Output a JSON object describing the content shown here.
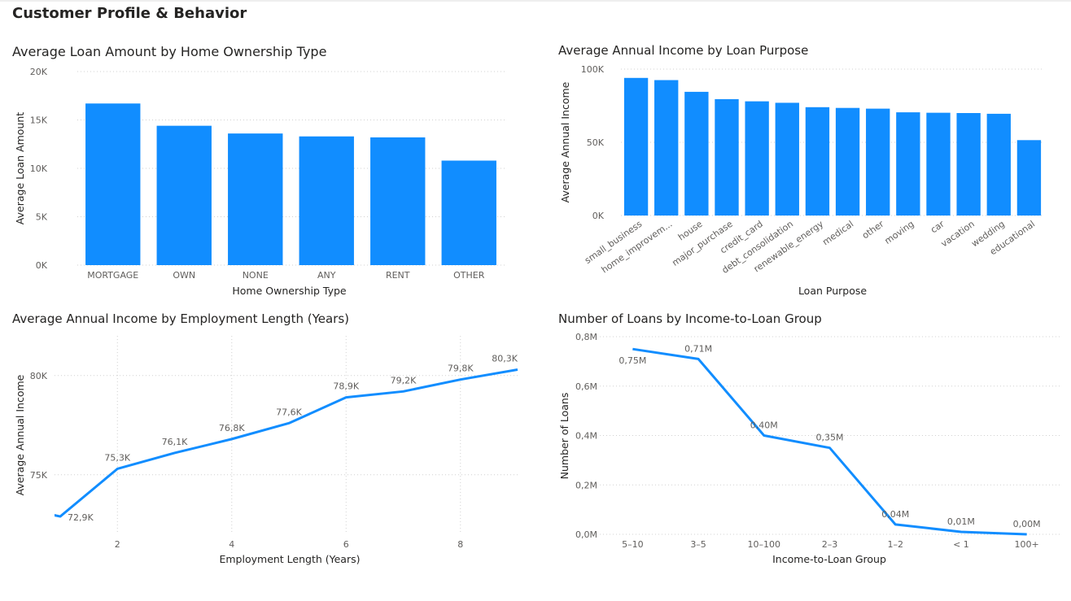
{
  "page": {
    "title": "Customer Profile & Behavior"
  },
  "colors": {
    "bar": "#118DFF",
    "line": "#118DFF"
  },
  "chart_data": [
    {
      "id": "home",
      "type": "bar",
      "title": "Average Loan Amount by Home Ownership Type",
      "xlabel": "Home Ownership Type",
      "ylabel": "Average Loan Amount",
      "categories": [
        "MORTGAGE",
        "OWN",
        "NONE",
        "ANY",
        "RENT",
        "OTHER"
      ],
      "values": [
        16700,
        14400,
        13600,
        13300,
        13200,
        10800
      ],
      "ylim": [
        0,
        20000
      ],
      "yticks": [
        0,
        5000,
        10000,
        15000,
        20000
      ],
      "ytick_labels": [
        "0K",
        "5K",
        "10K",
        "15K",
        "20K"
      ],
      "grid": true,
      "legend": "none"
    },
    {
      "id": "purpose",
      "type": "bar",
      "title": "Average Annual Income by Loan Purpose",
      "xlabel": "Loan Purpose",
      "ylabel": "Average Annual Income",
      "categories": [
        "small_business",
        "home_improvem...",
        "house",
        "major_purchase",
        "credit_card",
        "debt_consolidation",
        "renewable_energy",
        "medical",
        "other",
        "moving",
        "car",
        "vacation",
        "wedding",
        "educational"
      ],
      "values": [
        94000,
        92500,
        84500,
        79500,
        78000,
        77000,
        74000,
        73500,
        73000,
        70500,
        70200,
        70000,
        69500,
        51500
      ],
      "ylim": [
        0,
        100000
      ],
      "yticks": [
        0,
        50000,
        100000
      ],
      "ytick_labels": [
        "0K",
        "50K",
        "100K"
      ],
      "grid": true,
      "legend": "none"
    },
    {
      "id": "emp",
      "type": "line",
      "title": "Average Annual Income by Employment Length (Years)",
      "xlabel": "Employment Length (Years)",
      "ylabel": "Average Annual Income",
      "x": [
        0,
        1,
        2,
        3,
        4,
        5,
        6,
        7,
        8,
        9
      ],
      "values": [
        73500,
        72900,
        75300,
        76100,
        76800,
        77600,
        78900,
        79200,
        79800,
        80300
      ],
      "labels": [
        "",
        "72,9K",
        "75,3K",
        "76,1K",
        "76,8K",
        "77,6K",
        "78,9K",
        "79,2K",
        "79,8K",
        "80,3K"
      ],
      "xlim": [
        0.9,
        9
      ],
      "xticks": [
        2,
        4,
        6,
        8
      ],
      "xtick_labels": [
        "2",
        "4",
        "6",
        "8"
      ],
      "ylim": [
        72000,
        82000
      ],
      "yticks": [
        75000,
        80000
      ],
      "ytick_labels": [
        "75K",
        "80K"
      ],
      "grid": true,
      "legend": "none"
    },
    {
      "id": "ratio",
      "type": "line",
      "title": "Number of Loans by Income-to-Loan Group",
      "xlabel": "Income-to-Loan Group",
      "ylabel": "Number of Loans",
      "categories": [
        "5–10",
        "3–5",
        "10–100",
        "2–3",
        "1–2",
        "< 1",
        "100+"
      ],
      "values": [
        0.75,
        0.71,
        0.4,
        0.35,
        0.04,
        0.01,
        0.0
      ],
      "labels": [
        "0,75M",
        "0,71M",
        "0,40M",
        "0,35M",
        "0,04M",
        "0,01M",
        "0,00M"
      ],
      "ylim": [
        0,
        0.8
      ],
      "yticks": [
        0,
        0.2,
        0.4,
        0.6,
        0.8
      ],
      "ytick_labels": [
        "0,0M",
        "0,2M",
        "0,4M",
        "0,6M",
        "0,8M"
      ],
      "unit": "M",
      "grid": true,
      "legend": "none"
    }
  ]
}
